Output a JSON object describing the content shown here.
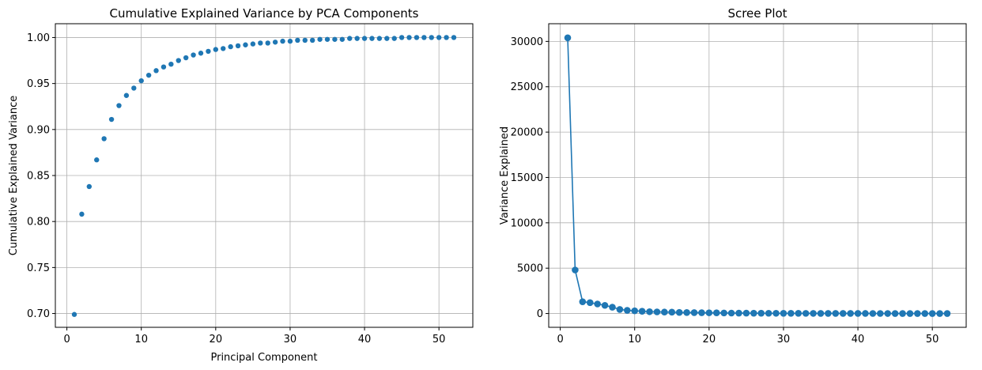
{
  "chart_data": [
    {
      "type": "scatter",
      "title": "Cumulative Explained Variance by PCA Components",
      "xlabel": "Principal Component",
      "ylabel": "Cumulative Explained Variance",
      "xlim": [
        -1.55,
        54.55
      ],
      "ylim": [
        0.685,
        1.015
      ],
      "xticks": [
        0,
        10,
        20,
        30,
        40,
        50
      ],
      "xtick_labels": [
        "0",
        "10",
        "20",
        "30",
        "40",
        "50"
      ],
      "yticks": [
        0.7,
        0.75,
        0.8,
        0.85,
        0.9,
        0.95,
        1.0
      ],
      "ytick_labels": [
        "0.70",
        "0.75",
        "0.80",
        "0.85",
        "0.90",
        "0.95",
        "1.00"
      ],
      "grid": true,
      "color": "#1f77b4",
      "x": [
        1,
        2,
        3,
        4,
        5,
        6,
        7,
        8,
        9,
        10,
        11,
        12,
        13,
        14,
        15,
        16,
        17,
        18,
        19,
        20,
        21,
        22,
        23,
        24,
        25,
        26,
        27,
        28,
        29,
        30,
        31,
        32,
        33,
        34,
        35,
        36,
        37,
        38,
        39,
        40,
        41,
        42,
        43,
        44,
        45,
        46,
        47,
        48,
        49,
        50,
        51,
        52
      ],
      "y": [
        0.699,
        0.808,
        0.838,
        0.867,
        0.89,
        0.911,
        0.926,
        0.937,
        0.945,
        0.953,
        0.959,
        0.964,
        0.968,
        0.971,
        0.975,
        0.978,
        0.981,
        0.983,
        0.985,
        0.987,
        0.988,
        0.99,
        0.991,
        0.992,
        0.993,
        0.994,
        0.994,
        0.995,
        0.996,
        0.996,
        0.997,
        0.997,
        0.997,
        0.998,
        0.998,
        0.998,
        0.998,
        0.999,
        0.999,
        0.999,
        0.999,
        0.999,
        0.999,
        0.999,
        1.0,
        1.0,
        1.0,
        1.0,
        1.0,
        1.0,
        1.0,
        1.0
      ]
    },
    {
      "type": "line",
      "title": "Scree Plot",
      "xlabel": "",
      "ylabel": "Variance Explained",
      "xlim": [
        -1.55,
        54.55
      ],
      "ylim": [
        -1520,
        31950
      ],
      "xticks": [
        0,
        10,
        20,
        30,
        40,
        50
      ],
      "xtick_labels": [
        "0",
        "10",
        "20",
        "30",
        "40",
        "50"
      ],
      "yticks": [
        0,
        5000,
        10000,
        15000,
        20000,
        25000,
        30000
      ],
      "ytick_labels": [
        "0",
        "5000",
        "10000",
        "15000",
        "20000",
        "25000",
        "30000"
      ],
      "grid": true,
      "color": "#1f77b4",
      "markers": true,
      "x": [
        1,
        2,
        3,
        4,
        5,
        6,
        7,
        8,
        9,
        10,
        11,
        12,
        13,
        14,
        15,
        16,
        17,
        18,
        19,
        20,
        21,
        22,
        23,
        24,
        25,
        26,
        27,
        28,
        29,
        30,
        31,
        32,
        33,
        34,
        35,
        36,
        37,
        38,
        39,
        40,
        41,
        42,
        43,
        44,
        45,
        46,
        47,
        48,
        49,
        50,
        51,
        52
      ],
      "y": [
        30400,
        4800,
        1300,
        1200,
        1050,
        900,
        700,
        450,
        350,
        300,
        250,
        200,
        180,
        160,
        150,
        120,
        110,
        100,
        90,
        80,
        75,
        60,
        50,
        45,
        40,
        35,
        30,
        28,
        25,
        22,
        20,
        18,
        16,
        15,
        14,
        12,
        11,
        10,
        9,
        8,
        7,
        6,
        5,
        4,
        3,
        3,
        2,
        2,
        1,
        1,
        1,
        1
      ]
    }
  ]
}
